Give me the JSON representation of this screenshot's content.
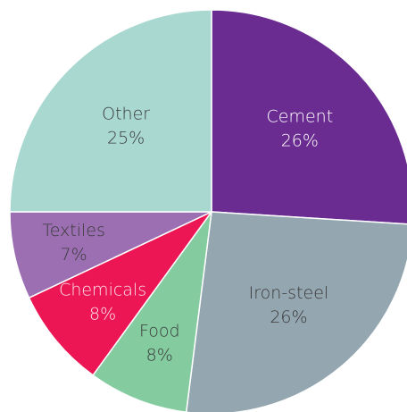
{
  "chart_data": {
    "type": "pie",
    "categories": [
      "Cement",
      "Iron-steel",
      "Food",
      "Chemicals",
      "Textiles",
      "Other"
    ],
    "values": [
      26,
      26,
      8,
      8,
      7,
      25
    ],
    "value_labels": [
      "26%",
      "26%",
      "8%",
      "8%",
      "7%",
      "25%"
    ],
    "colors": [
      "#6a2c91",
      "#94a6b0",
      "#84cc9f",
      "#ec1655",
      "#9b6fb2",
      "#a9d8d0"
    ],
    "label_colors": [
      "#ffffff",
      "#3a3a3a",
      "#3a3a3a",
      "#fbe3ea",
      "#3a3a3a",
      "#3a3a3a"
    ]
  }
}
